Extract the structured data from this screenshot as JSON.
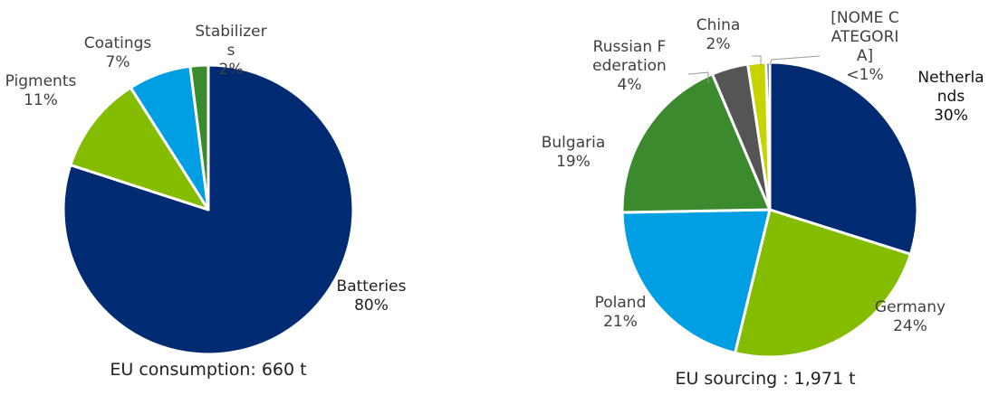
{
  "chart_data": [
    {
      "type": "pie",
      "title": "EU consumption: 660 t",
      "categories": [
        "Batteries",
        "Pigments",
        "Coatings",
        "Stabilizers"
      ],
      "values": [
        80,
        11,
        7,
        2
      ],
      "value_labels": [
        "80%",
        "11%",
        "7%",
        "2%"
      ],
      "colors": [
        "#002b73",
        "#84bd00",
        "#009fe3",
        "#3c8a2e"
      ]
    },
    {
      "type": "pie",
      "title": "EU sourcing : 1,971 t",
      "categories": [
        "Netherlands",
        "Germany",
        "Poland",
        "Bulgaria",
        "Russian Federation",
        "China",
        "[NOME CATEGORIA]"
      ],
      "values": [
        30,
        24,
        21,
        19,
        4,
        2,
        0.4
      ],
      "value_labels": [
        "30%",
        "24%",
        "21%",
        "19%",
        "4%",
        "2%",
        "<1%"
      ],
      "colors": [
        "#002b73",
        "#84bd00",
        "#009fe3",
        "#3c8a2e",
        "#555555",
        "#c8d400",
        "#002b73"
      ]
    }
  ]
}
